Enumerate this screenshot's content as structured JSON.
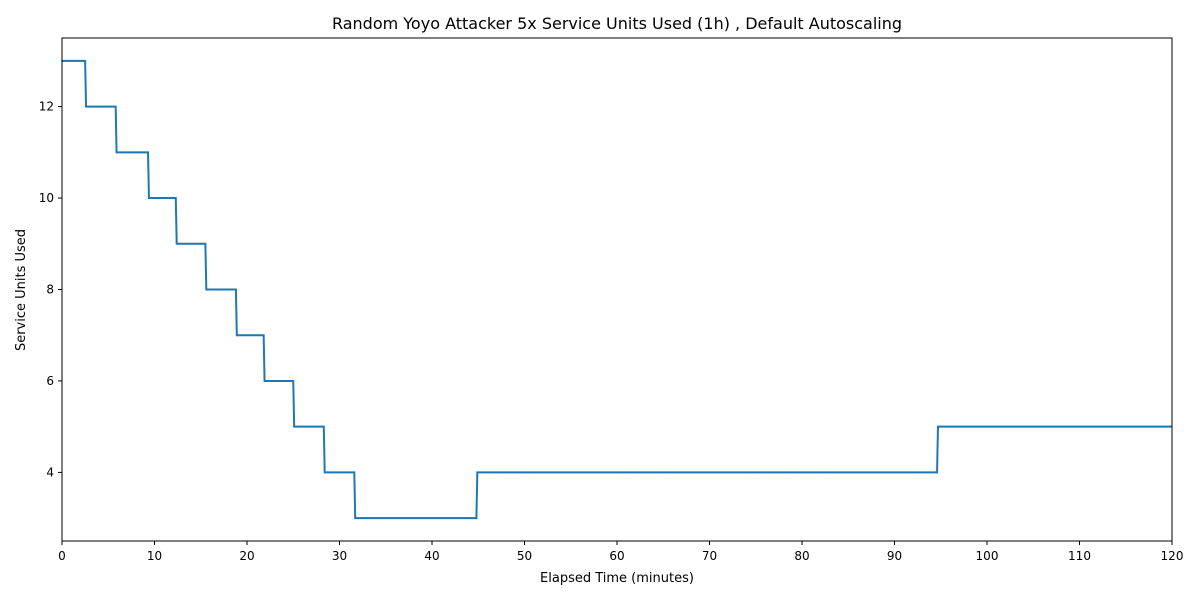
{
  "chart_data": {
    "type": "line",
    "title": "Random Yoyo Attacker 5x Service Units Used (1h) , Default Autoscaling",
    "xlabel": "Elapsed Time (minutes)",
    "ylabel": "Service Units Used",
    "xlim": [
      0,
      120
    ],
    "ylim": [
      2.5,
      13.5
    ],
    "xticks": [
      "0",
      "10",
      "20",
      "30",
      "40",
      "50",
      "60",
      "70",
      "80",
      "90",
      "100",
      "110",
      "120"
    ],
    "yticks": [
      "4",
      "6",
      "8",
      "10",
      "12"
    ],
    "grid": false,
    "legend": "none",
    "series": [
      {
        "color": "#1f77b4",
        "x": [
          0,
          2.5,
          2.6,
          5.8,
          5.9,
          9.3,
          9.4,
          12.3,
          12.4,
          15.5,
          15.6,
          18.8,
          18.9,
          21.8,
          21.9,
          25.0,
          25.1,
          28.3,
          28.4,
          31.6,
          31.7,
          44.8,
          44.9,
          94.6,
          94.7,
          120
        ],
        "y": [
          13,
          13,
          12,
          12,
          11,
          11,
          10,
          10,
          9,
          9,
          8,
          8,
          7,
          7,
          6,
          6,
          5,
          5,
          4,
          4,
          3,
          3,
          4,
          4,
          5,
          5
        ]
      }
    ]
  }
}
